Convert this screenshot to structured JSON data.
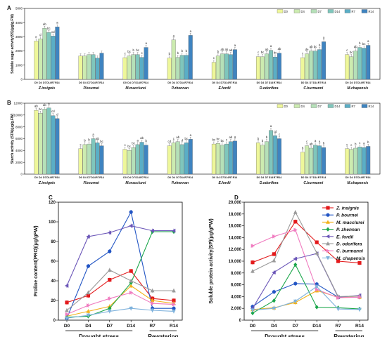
{
  "groups": [
    "Z.insignis",
    "P.bournei",
    "M.macclurei",
    "P.zhennan",
    "E.fordii",
    "D.odorifera",
    "C.burmanni",
    "M.chapensis"
  ],
  "days": [
    "D0",
    "D4",
    "D7",
    "D14",
    "R7",
    "R14"
  ],
  "colors": [
    "#eef79a",
    "#ccebb0",
    "#b5e0b8",
    "#7fc6bc",
    "#5aaec6",
    "#3f84c0"
  ],
  "chart_data": [
    {
      "panel": "A",
      "type": "bar",
      "ylabel": "Soluble sugar activity(SS)(μg/g.FW)",
      "ylim": [
        0,
        5000
      ],
      "yticks": [
        0,
        1000,
        2000,
        3000,
        4000,
        5000
      ],
      "categories": [
        "Z.insignis",
        "P.bournei",
        "M.macclurei",
        "P.zhennan",
        "E.fordii",
        "D.odorifera",
        "C.burmanni",
        "M.chapensis"
      ],
      "series": [
        {
          "name": "D0",
          "values": [
            2700,
            1650,
            1530,
            1500,
            1200,
            1600,
            1530,
            1750
          ]
        },
        {
          "name": "D4",
          "values": [
            2850,
            1650,
            1650,
            2780,
            1650,
            1600,
            1800,
            1600
          ]
        },
        {
          "name": "D7",
          "values": [
            3600,
            1750,
            1750,
            1550,
            1800,
            1800,
            2000,
            2000
          ]
        },
        {
          "name": "D14",
          "values": [
            3300,
            1750,
            1750,
            1700,
            1800,
            2050,
            2000,
            2250
          ]
        },
        {
          "name": "R7",
          "values": [
            3050,
            1500,
            1550,
            1700,
            1750,
            1580,
            2100,
            2200
          ]
        },
        {
          "name": "R14",
          "values": [
            3700,
            1850,
            2250,
            3100,
            2100,
            1850,
            2650,
            2400
          ]
        }
      ],
      "letters": [
        [
          "e",
          "d",
          "ab",
          "bc",
          "cd",
          "a"
        ],
        [
          "",
          "",
          "",
          "",
          "",
          ""
        ],
        [
          "c",
          "bc",
          "b",
          "bc",
          "c",
          "a"
        ],
        [
          "b",
          "a",
          "b",
          "b",
          "b",
          "a"
        ],
        [
          "c",
          "b",
          "ab",
          "ab",
          "ab",
          "a"
        ],
        [
          "c",
          "bc",
          "ab",
          "a",
          "bc",
          "ab"
        ],
        [
          "c",
          "de",
          "ab",
          "bc",
          "b",
          "a"
        ],
        [
          "c",
          "bc",
          "ab",
          "b",
          "bc",
          "a"
        ]
      ]
    },
    {
      "panel": "B",
      "type": "bar",
      "ylabel": "Starch activity (STA)(μg/g.FW)",
      "ylim": [
        0,
        12000
      ],
      "yticks": [
        0,
        2000,
        4000,
        6000,
        8000,
        10000,
        12000
      ],
      "categories": [
        "Z.insignis",
        "P.bournei",
        "M.macclurei",
        "P.zhennan",
        "E.fordii",
        "D.odorifera",
        "C.burmanni",
        "M.chapensis"
      ],
      "series": [
        {
          "name": "D0",
          "values": [
            10800,
            4300,
            4200,
            4800,
            5100,
            5300,
            3700,
            4300
          ]
        },
        {
          "name": "D4",
          "values": [
            10300,
            5000,
            4000,
            5300,
            5200,
            4900,
            4800,
            4200
          ]
        },
        {
          "name": "D7",
          "values": [
            11000,
            5100,
            4500,
            5500,
            4900,
            5500,
            4400,
            4400
          ]
        },
        {
          "name": "D14",
          "values": [
            11200,
            6000,
            5000,
            5000,
            5100,
            7400,
            4900,
            4600
          ]
        },
        {
          "name": "R7",
          "values": [
            9900,
            5300,
            5400,
            5300,
            5500,
            6500,
            4800,
            4500
          ]
        },
        {
          "name": "R14",
          "values": [
            9400,
            4800,
            4900,
            5900,
            5600,
            6000,
            4500,
            4700
          ]
        }
      ],
      "letters": [
        [
          "ab",
          "bc",
          "ab",
          "a",
          "cd",
          "d"
        ],
        [
          "c",
          "b",
          "b",
          "a",
          "ab",
          "bc"
        ],
        [
          "c",
          "bc",
          "bc",
          "a",
          "ab",
          "b"
        ],
        [
          "cd",
          "c",
          "ab",
          "d",
          "bc",
          "a"
        ],
        [
          "bc",
          "bc",
          "bc",
          "c",
          "ab",
          "a"
        ],
        [
          "b",
          "b",
          "b",
          "a",
          "cd",
          "c"
        ],
        [
          "b",
          "c",
          "ab",
          "a",
          "a",
          "b"
        ],
        [
          "c",
          "c",
          "b",
          "c",
          "a",
          "b"
        ]
      ]
    },
    {
      "panel": "C",
      "type": "line",
      "ylabel": "Proline content(PRO)(μg/gFW)",
      "ylim": [
        0,
        120
      ],
      "yticks": [
        0,
        20,
        40,
        60,
        80,
        100,
        120
      ],
      "x": [
        "D0",
        "D4",
        "D7",
        "D14",
        "R7",
        "R14"
      ],
      "series": [
        {
          "name": "Z. insignis",
          "values": [
            18,
            25,
            41,
            50,
            22,
            20
          ]
        },
        {
          "name": "P. bournei",
          "values": [
            2,
            55,
            70,
            110,
            12,
            12
          ]
        },
        {
          "name": "M. macclurei",
          "values": [
            4,
            9,
            14,
            35,
            20,
            17
          ]
        },
        {
          "name": "P. zhennan",
          "values": [
            3,
            4,
            12,
            38,
            90,
            90
          ]
        },
        {
          "name": "E. fordii",
          "values": [
            35,
            85,
            89,
            96,
            91,
            91
          ]
        },
        {
          "name": "D. odorifera",
          "values": [
            10,
            28,
            51,
            40,
            30,
            30
          ]
        },
        {
          "name": "C. burmanni",
          "values": [
            6,
            15,
            22,
            28,
            17,
            16
          ]
        },
        {
          "name": "M. chapensis",
          "values": [
            2,
            5,
            9,
            12,
            10,
            9
          ]
        }
      ],
      "groups": [
        "Drought stress",
        "Rewatering"
      ]
    },
    {
      "panel": "D",
      "type": "line",
      "ylabel": "Soluble protein activity(SP)(μg/gFW)",
      "ylim": [
        0,
        20000
      ],
      "yticks": [
        "0",
        "2,000",
        "4,000",
        "6,000",
        "8,000",
        "10,000",
        "12,000",
        "14,000",
        "16,000",
        "18,000",
        "20,000"
      ],
      "x": [
        "D0",
        "D4",
        "D7",
        "D14",
        "R7",
        "R14"
      ],
      "series": [
        {
          "name": "Z. insignis",
          "values": [
            9800,
            11200,
            16700,
            13200,
            10000,
            9700
          ]
        },
        {
          "name": "P. bournei",
          "values": [
            2300,
            4800,
            6200,
            6100,
            3900,
            3900
          ]
        },
        {
          "name": "M. macclurei",
          "values": [
            1800,
            2100,
            3000,
            5000,
            3900,
            3900
          ]
        },
        {
          "name": "P. zhennan",
          "values": [
            1200,
            3300,
            9400,
            2200,
            2100,
            1900
          ]
        },
        {
          "name": "E. fordii",
          "values": [
            2000,
            8100,
            10400,
            11300,
            3900,
            4200
          ]
        },
        {
          "name": "D. odorifera",
          "values": [
            8300,
            10100,
            18300,
            11400,
            4000,
            4100
          ]
        },
        {
          "name": "C. burmanni",
          "values": [
            12600,
            14200,
            15300,
            5200,
            3800,
            3900
          ]
        },
        {
          "name": "M. chapensis",
          "values": [
            1700,
            2000,
            3200,
            5700,
            1900,
            1800
          ]
        }
      ],
      "groups": [
        "Drought stress",
        "Rewatering"
      ]
    }
  ],
  "line_styles": [
    {
      "color": "#e31a1c",
      "marker": "square"
    },
    {
      "color": "#2255c4",
      "marker": "circle"
    },
    {
      "color": "#f2b21b",
      "marker": "triangle"
    },
    {
      "color": "#1aa64a",
      "marker": "diamond"
    },
    {
      "color": "#6b56b8",
      "marker": "triangle-left"
    },
    {
      "color": "#9a9a9a",
      "marker": "triangle-up"
    },
    {
      "color": "#f07cc0",
      "marker": "triangle-right"
    },
    {
      "color": "#7fb2dc",
      "marker": "triangle-down"
    }
  ]
}
